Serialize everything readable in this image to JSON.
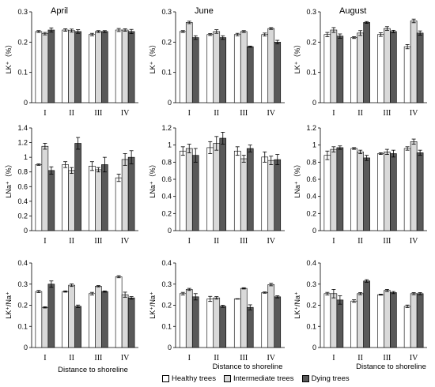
{
  "colors": {
    "Healthy trees": "#ffffff",
    "Intermediate trees": "#d9d9d9",
    "Dying trees": "#595959",
    "axis": "#000000",
    "error_bar": "#000000"
  },
  "legend": [
    "Healthy trees",
    "Intermediate trees",
    "Dying trees"
  ],
  "chart_data": [
    {
      "type": "bar",
      "title": "April",
      "ylabel": "LK⁺（%）",
      "xlabel": "",
      "categories": [
        "I",
        "II",
        "III",
        "IV"
      ],
      "ylim": [
        0,
        0.3
      ],
      "yticks": [
        "0",
        "0.1",
        "0.2",
        "0.3"
      ],
      "series": [
        {
          "name": "Healthy trees",
          "values": [
            0.235,
            0.24,
            0.225,
            0.24
          ],
          "errors": [
            0.003,
            0.004,
            0.004,
            0.005
          ]
        },
        {
          "name": "Intermediate trees",
          "values": [
            0.228,
            0.238,
            0.235,
            0.24
          ],
          "errors": [
            0.004,
            0.005,
            0.003,
            0.004
          ]
        },
        {
          "name": "Dying trees",
          "values": [
            0.24,
            0.235,
            0.235,
            0.235
          ],
          "errors": [
            0.007,
            0.006,
            0.003,
            0.007
          ]
        }
      ]
    },
    {
      "type": "bar",
      "title": "June",
      "ylabel": "LK⁺（%）",
      "xlabel": "",
      "categories": [
        "I",
        "II",
        "III",
        "IV"
      ],
      "ylim": [
        0,
        0.3
      ],
      "yticks": [
        "0",
        "0.1",
        "0.2",
        "0.3"
      ],
      "series": [
        {
          "name": "Healthy trees",
          "values": [
            0.235,
            0.225,
            0.225,
            0.225
          ],
          "errors": [
            0.003,
            0.003,
            0.004,
            0.005
          ]
        },
        {
          "name": "Intermediate trees",
          "values": [
            0.265,
            0.235,
            0.235,
            0.245
          ],
          "errors": [
            0.004,
            0.006,
            0.003,
            0.003
          ]
        },
        {
          "name": "Dying trees",
          "values": [
            0.215,
            0.215,
            0.185,
            0.2
          ],
          "errors": [
            0.006,
            0.006,
            0.002,
            0.006
          ]
        }
      ]
    },
    {
      "type": "bar",
      "title": "August",
      "ylabel": "LK⁺（%）",
      "xlabel": "",
      "categories": [
        "I",
        "II",
        "III",
        "IV"
      ],
      "ylim": [
        0,
        0.3
      ],
      "yticks": [
        "0",
        "0.1",
        "0.2",
        "0.3"
      ],
      "series": [
        {
          "name": "Healthy trees",
          "values": [
            0.225,
            0.215,
            0.225,
            0.185
          ],
          "errors": [
            0.007,
            0.003,
            0.006,
            0.007
          ]
        },
        {
          "name": "Intermediate trees",
          "values": [
            0.24,
            0.23,
            0.245,
            0.27
          ],
          "errors": [
            0.008,
            0.008,
            0.006,
            0.006
          ]
        },
        {
          "name": "Dying trees",
          "values": [
            0.22,
            0.265,
            0.235,
            0.23
          ],
          "errors": [
            0.007,
            0.003,
            0.004,
            0.007
          ]
        }
      ]
    },
    {
      "type": "bar",
      "title": "",
      "ylabel": "LNa⁺（%）",
      "xlabel": "",
      "categories": [
        "I",
        "II",
        "III",
        "IV"
      ],
      "ylim": [
        0,
        1.4
      ],
      "yticks": [
        "0",
        "0.2",
        "0.4",
        "0.6",
        "0.8",
        "1",
        "1.2",
        "1.4"
      ],
      "series": [
        {
          "name": "Healthy trees",
          "values": [
            0.9,
            0.9,
            0.88,
            0.72
          ],
          "errors": [
            0.01,
            0.04,
            0.06,
            0.05
          ]
        },
        {
          "name": "Intermediate trees",
          "values": [
            1.15,
            0.82,
            0.83,
            0.97
          ],
          "errors": [
            0.04,
            0.04,
            0.03,
            0.08
          ]
        },
        {
          "name": "Dying trees",
          "values": [
            0.82,
            1.19,
            0.9,
            1.0
          ],
          "errors": [
            0.05,
            0.08,
            0.1,
            0.09
          ]
        }
      ]
    },
    {
      "type": "bar",
      "title": "",
      "ylabel": "LNa⁺（%）",
      "xlabel": "",
      "categories": [
        "I",
        "II",
        "III",
        "IV"
      ],
      "ylim": [
        0,
        1.2
      ],
      "yticks": [
        "0",
        "0.2",
        "0.4",
        "0.6",
        "0.8",
        "1",
        "1.2"
      ],
      "series": [
        {
          "name": "Healthy trees",
          "values": [
            0.93,
            0.97,
            0.93,
            0.86
          ],
          "errors": [
            0.05,
            0.07,
            0.05,
            0.06
          ]
        },
        {
          "name": "Intermediate trees",
          "values": [
            0.96,
            1.02,
            0.84,
            0.82
          ],
          "errors": [
            0.05,
            0.08,
            0.04,
            0.05
          ]
        },
        {
          "name": "Dying trees",
          "values": [
            0.88,
            1.08,
            0.96,
            0.83
          ],
          "errors": [
            0.08,
            0.07,
            0.04,
            0.06
          ]
        }
      ]
    },
    {
      "type": "bar",
      "title": "",
      "ylabel": "LNa⁺（%）",
      "xlabel": "",
      "categories": [
        "I",
        "II",
        "III",
        "IV"
      ],
      "ylim": [
        0,
        1.2
      ],
      "yticks": [
        "0",
        "0.2",
        "0.4",
        "0.6",
        "0.8",
        "1",
        "1.2"
      ],
      "series": [
        {
          "name": "Healthy trees",
          "values": [
            0.88,
            0.96,
            0.9,
            0.96
          ],
          "errors": [
            0.05,
            0.01,
            0.01,
            0.02
          ]
        },
        {
          "name": "Intermediate trees",
          "values": [
            0.95,
            0.92,
            0.92,
            1.04
          ],
          "errors": [
            0.03,
            0.02,
            0.03,
            0.03
          ]
        },
        {
          "name": "Dying trees",
          "values": [
            0.97,
            0.85,
            0.9,
            0.91
          ],
          "errors": [
            0.02,
            0.03,
            0.04,
            0.03
          ]
        }
      ]
    },
    {
      "type": "bar",
      "title": "",
      "ylabel": "LK⁺/Na⁺",
      "xlabel": "Distance to shoreline",
      "categories": [
        "I",
        "II",
        "III",
        "IV"
      ],
      "ylim": [
        0,
        0.4
      ],
      "yticks": [
        "0",
        "0.1",
        "0.2",
        "0.3",
        "0.4"
      ],
      "series": [
        {
          "name": "Healthy trees",
          "values": [
            0.265,
            0.265,
            0.255,
            0.335
          ],
          "errors": [
            0.005,
            0.003,
            0.006,
            0.005
          ]
        },
        {
          "name": "Intermediate trees",
          "values": [
            0.19,
            0.295,
            0.29,
            0.25
          ],
          "errors": [
            0.003,
            0.006,
            0.003,
            0.012
          ]
        },
        {
          "name": "Dying trees",
          "values": [
            0.3,
            0.195,
            0.265,
            0.235
          ],
          "errors": [
            0.015,
            0.006,
            0.003,
            0.006
          ]
        }
      ]
    },
    {
      "type": "bar",
      "title": "",
      "ylabel": "LK⁺/Na⁺",
      "xlabel": "Distance to shoreline",
      "categories": [
        "I",
        "II",
        "III",
        "IV"
      ],
      "ylim": [
        0,
        0.4
      ],
      "yticks": [
        "0",
        "0.1",
        "0.2",
        "0.3",
        "0.4"
      ],
      "series": [
        {
          "name": "Healthy trees",
          "values": [
            0.255,
            0.23,
            0.23,
            0.26
          ],
          "errors": [
            0.006,
            0.012,
            0.001,
            0.003
          ]
        },
        {
          "name": "Intermediate trees",
          "values": [
            0.275,
            0.235,
            0.28,
            0.298
          ],
          "errors": [
            0.005,
            0.006,
            0.003,
            0.006
          ]
        },
        {
          "name": "Dying trees",
          "values": [
            0.24,
            0.195,
            0.19,
            0.24
          ],
          "errors": [
            0.015,
            0.005,
            0.012,
            0.005
          ]
        }
      ]
    },
    {
      "type": "bar",
      "title": "",
      "ylabel": "LK⁺/Na⁺",
      "xlabel": "Distance to shoreline",
      "categories": [
        "I",
        "II",
        "III",
        "IV"
      ],
      "ylim": [
        0,
        0.4
      ],
      "yticks": [
        "0",
        "0.1",
        "0.2",
        "0.3",
        "0.4"
      ],
      "series": [
        {
          "name": "Healthy trees",
          "values": [
            0.255,
            0.22,
            0.25,
            0.195
          ],
          "errors": [
            0.006,
            0.006,
            0.002,
            0.006
          ]
        },
        {
          "name": "Intermediate trees",
          "values": [
            0.255,
            0.255,
            0.27,
            0.255
          ],
          "errors": [
            0.02,
            0.005,
            0.005,
            0.005
          ]
        },
        {
          "name": "Dying trees",
          "values": [
            0.225,
            0.315,
            0.26,
            0.255
          ],
          "errors": [
            0.02,
            0.006,
            0.005,
            0.005
          ]
        }
      ]
    }
  ]
}
